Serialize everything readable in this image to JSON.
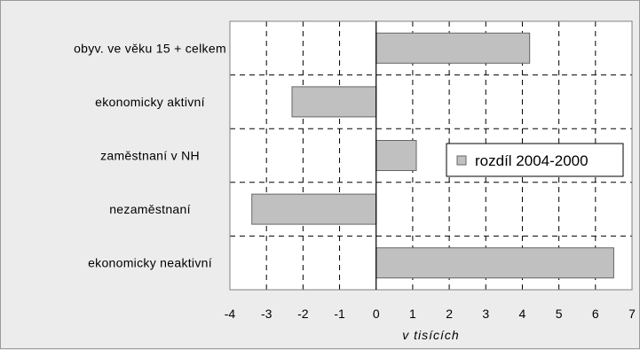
{
  "chart_data": {
    "type": "bar",
    "orientation": "horizontal",
    "categories": [
      "obyv. ve věku 15 + celkem",
      "ekonomicky aktivní",
      "zaměstnaní v NH",
      "nezaměstnaní",
      "ekonomicky neaktivní"
    ],
    "series": [
      {
        "name": "rozdíl 2004-2000",
        "values": [
          4.2,
          -2.3,
          1.1,
          -3.4,
          6.5
        ],
        "color": "#c0c0c0"
      }
    ],
    "xlabel": "v tisících",
    "xlim": [
      -4,
      7
    ],
    "xticks": [
      -4,
      -3,
      -2,
      -1,
      0,
      1,
      2,
      3,
      4,
      5,
      6,
      7
    ],
    "grid": true,
    "legend_position": "right"
  }
}
